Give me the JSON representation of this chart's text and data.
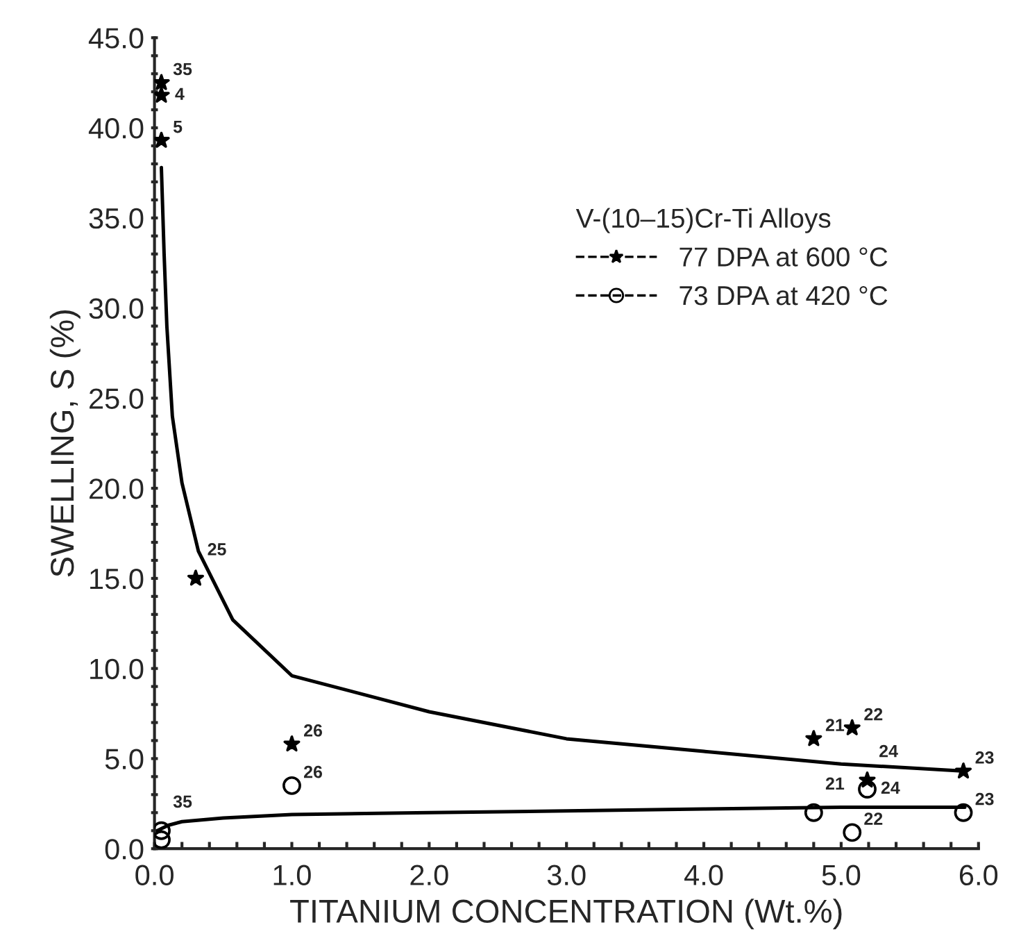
{
  "chart_data": {
    "type": "scatter",
    "xlabel": "TITANIUM CONCENTRATION (Wt.%)",
    "ylabel": "SWELLING, S (%)",
    "legend_title": "V-(10–15)Cr-Ti Alloys",
    "legend": "top right",
    "grid": false,
    "xlim": [
      0,
      6
    ],
    "ylim": [
      0,
      45
    ],
    "xticks": [
      {
        "value": 0,
        "label": "0.0"
      },
      {
        "value": 0.2,
        "label": null
      },
      {
        "value": 0.4,
        "label": null
      },
      {
        "value": 0.6,
        "label": null
      },
      {
        "value": 0.8,
        "label": null
      },
      {
        "value": 1,
        "label": "1.0"
      },
      {
        "value": 1.2,
        "label": null
      },
      {
        "value": 1.4,
        "label": null
      },
      {
        "value": 1.6,
        "label": null
      },
      {
        "value": 1.8,
        "label": null
      },
      {
        "value": 2,
        "label": "2.0"
      },
      {
        "value": 2.2,
        "label": null
      },
      {
        "value": 2.4,
        "label": null
      },
      {
        "value": 2.6,
        "label": null
      },
      {
        "value": 2.8,
        "label": null
      },
      {
        "value": 3,
        "label": "3.0"
      },
      {
        "value": 3.2,
        "label": null
      },
      {
        "value": 3.4,
        "label": null
      },
      {
        "value": 3.6,
        "label": null
      },
      {
        "value": 3.8,
        "label": null
      },
      {
        "value": 4,
        "label": "4.0"
      },
      {
        "value": 4.2,
        "label": null
      },
      {
        "value": 4.4,
        "label": null
      },
      {
        "value": 4.6,
        "label": null
      },
      {
        "value": 4.8,
        "label": null
      },
      {
        "value": 5,
        "label": "5.0"
      },
      {
        "value": 5.2,
        "label": null
      },
      {
        "value": 5.4,
        "label": null
      },
      {
        "value": 5.6,
        "label": null
      },
      {
        "value": 5.8,
        "label": null
      },
      {
        "value": 6,
        "label": "6.0"
      }
    ],
    "yticks": [
      {
        "value": 0,
        "label": "0.0"
      },
      {
        "value": 1,
        "label": null
      },
      {
        "value": 2,
        "label": null
      },
      {
        "value": 3,
        "label": null
      },
      {
        "value": 4,
        "label": null
      },
      {
        "value": 5,
        "label": "5.0"
      },
      {
        "value": 6,
        "label": null
      },
      {
        "value": 7,
        "label": null
      },
      {
        "value": 8,
        "label": null
      },
      {
        "value": 9,
        "label": null
      },
      {
        "value": 10,
        "label": "10.0"
      },
      {
        "value": 11,
        "label": null
      },
      {
        "value": 12,
        "label": null
      },
      {
        "value": 13,
        "label": null
      },
      {
        "value": 14,
        "label": null
      },
      {
        "value": 15,
        "label": "15.0"
      },
      {
        "value": 16,
        "label": null
      },
      {
        "value": 17,
        "label": null
      },
      {
        "value": 18,
        "label": null
      },
      {
        "value": 19,
        "label": null
      },
      {
        "value": 20,
        "label": "20.0"
      },
      {
        "value": 21,
        "label": null
      },
      {
        "value": 22,
        "label": null
      },
      {
        "value": 23,
        "label": null
      },
      {
        "value": 24,
        "label": null
      },
      {
        "value": 25,
        "label": "25.0"
      },
      {
        "value": 26,
        "label": null
      },
      {
        "value": 27,
        "label": null
      },
      {
        "value": 28,
        "label": null
      },
      {
        "value": 29,
        "label": null
      },
      {
        "value": 30,
        "label": "30.0"
      },
      {
        "value": 31,
        "label": null
      },
      {
        "value": 32,
        "label": null
      },
      {
        "value": 33,
        "label": null
      },
      {
        "value": 34,
        "label": null
      },
      {
        "value": 35,
        "label": "35.0"
      },
      {
        "value": 36,
        "label": null
      },
      {
        "value": 37,
        "label": null
      },
      {
        "value": 38,
        "label": null
      },
      {
        "value": 39,
        "label": null
      },
      {
        "value": 40,
        "label": "40.0"
      },
      {
        "value": 41,
        "label": null
      },
      {
        "value": 42,
        "label": null
      },
      {
        "value": 43,
        "label": null
      },
      {
        "value": 44,
        "label": null
      },
      {
        "value": 45,
        "label": "45.0"
      }
    ],
    "series": [
      {
        "name": "77 DPA at 600 °C",
        "marker": "star",
        "color": "#000000",
        "x": [
          0.05,
          0.05,
          0.05,
          0.3,
          1.0,
          4.8,
          5.08,
          5.19,
          5.89
        ],
        "values": [
          42.5,
          41.8,
          39.3,
          15.0,
          5.8,
          6.1,
          6.7,
          3.8,
          4.3
        ]
      },
      {
        "name": "73 DPA at 420 °C",
        "marker": "circle",
        "color": "#000000",
        "x": [
          0.05,
          0.05,
          1.0,
          4.8,
          5.08,
          5.19,
          5.89
        ],
        "values": [
          1.0,
          0.5,
          3.5,
          2.0,
          0.9,
          3.3,
          2.0
        ]
      },
      {
        "type": "line",
        "line_style": "solid",
        "marker": "none",
        "color": "#000000",
        "x": [
          0.05,
          0.07,
          0.09,
          0.13,
          0.2,
          0.32,
          0.57,
          1.0,
          2.0,
          3.0,
          4.0,
          5.0,
          5.9
        ],
        "values": [
          37.8,
          33,
          29,
          24,
          20.3,
          16.5,
          12.7,
          9.6,
          7.6,
          6.1,
          5.4,
          4.7,
          4.3
        ]
      },
      {
        "type": "line",
        "line_style": "solid",
        "marker": "none",
        "color": "#000000",
        "x": [
          0.02,
          0.1,
          0.2,
          0.5,
          1.0,
          2.0,
          3.0,
          4.0,
          5.0,
          5.9
        ],
        "values": [
          1.0,
          1.3,
          1.5,
          1.7,
          1.9,
          2.0,
          2.1,
          2.2,
          2.3,
          2.3
        ]
      }
    ],
    "annotations": [
      {
        "text": "35",
        "x": 0.05,
        "y": 42.5
      },
      {
        "text": "4",
        "x": 0.05,
        "y": 41.8
      },
      {
        "text": "5",
        "x": 0.05,
        "y": 39.3
      },
      {
        "text": "25",
        "x": 0.3,
        "y": 15.0
      },
      {
        "text": "26",
        "x": 1.0,
        "y": 5.8
      },
      {
        "text": "21",
        "x": 4.8,
        "y": 6.1
      },
      {
        "text": "22",
        "x": 5.08,
        "y": 6.7
      },
      {
        "text": "24",
        "x": 5.19,
        "y": 3.8
      },
      {
        "text": "23",
        "x": 5.89,
        "y": 4.3
      },
      {
        "text": "35",
        "x": 0.05,
        "y": 1.0
      },
      {
        "text": "26",
        "x": 1.0,
        "y": 3.5
      },
      {
        "text": "21",
        "x": 4.8,
        "y": 2.0
      },
      {
        "text": "22",
        "x": 5.08,
        "y": 0.9
      },
      {
        "text": "24",
        "x": 5.19,
        "y": 3.3
      },
      {
        "text": "23",
        "x": 5.89,
        "y": 2.0
      }
    ]
  }
}
